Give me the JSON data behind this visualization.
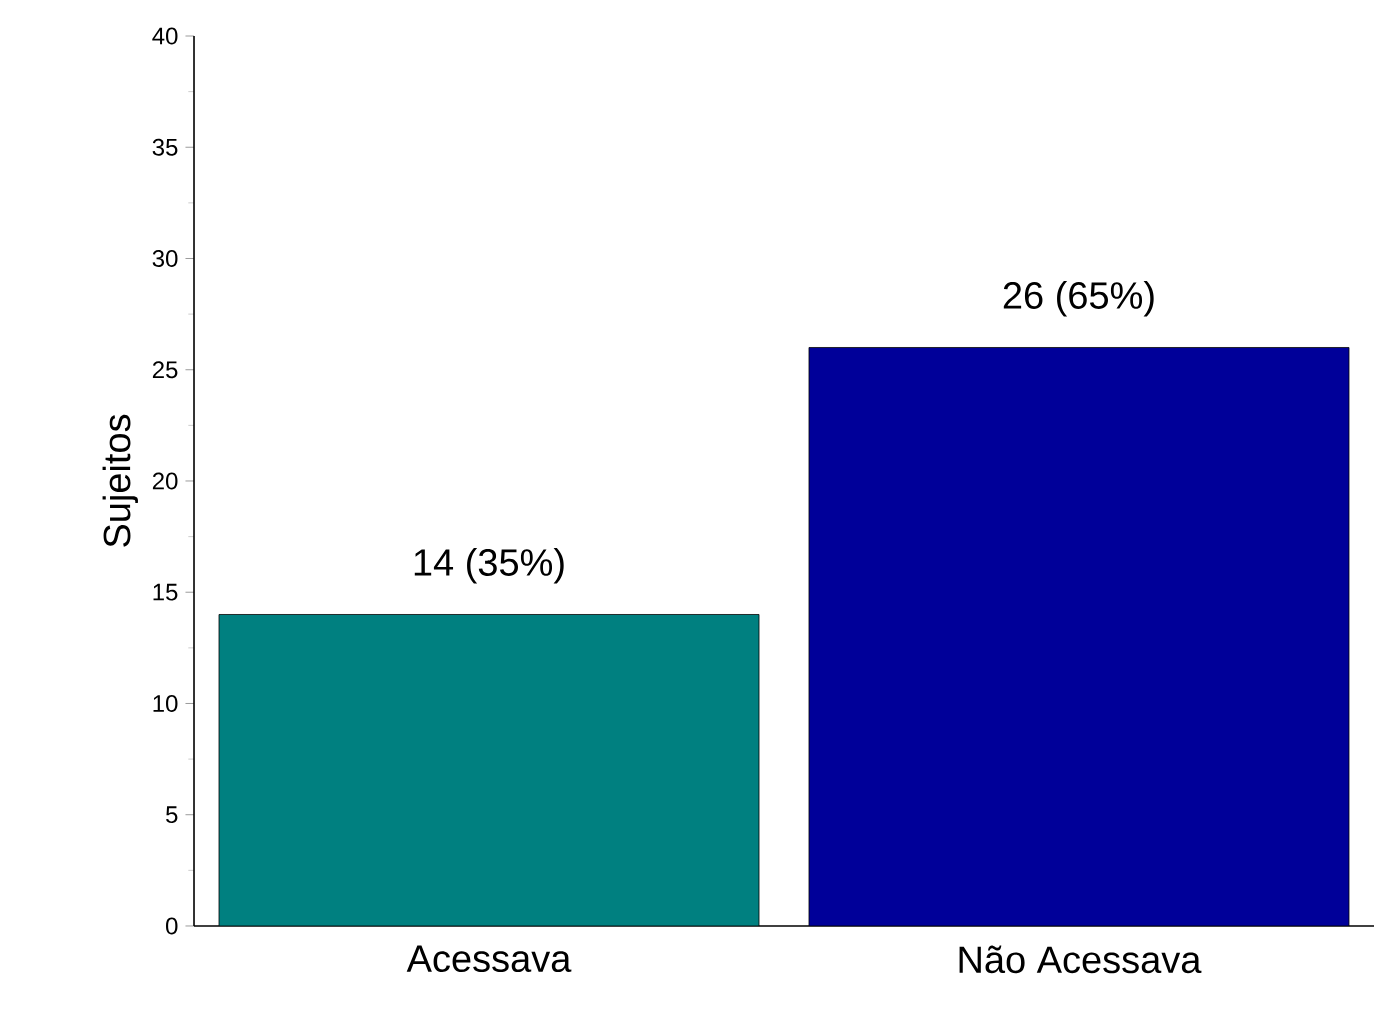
{
  "chart_data": {
    "type": "bar",
    "ylabel": "Sujeitos",
    "categories": [
      "Acessava",
      "Não Acessava"
    ],
    "values": [
      14,
      26
    ],
    "colors": [
      "#008080",
      "#000099"
    ],
    "value_labels": [
      "14 (35%)",
      "26 (65%)"
    ],
    "ylim": [
      0,
      40
    ],
    "yticks": [
      0,
      5,
      10,
      15,
      20,
      25,
      30,
      35,
      40
    ]
  }
}
